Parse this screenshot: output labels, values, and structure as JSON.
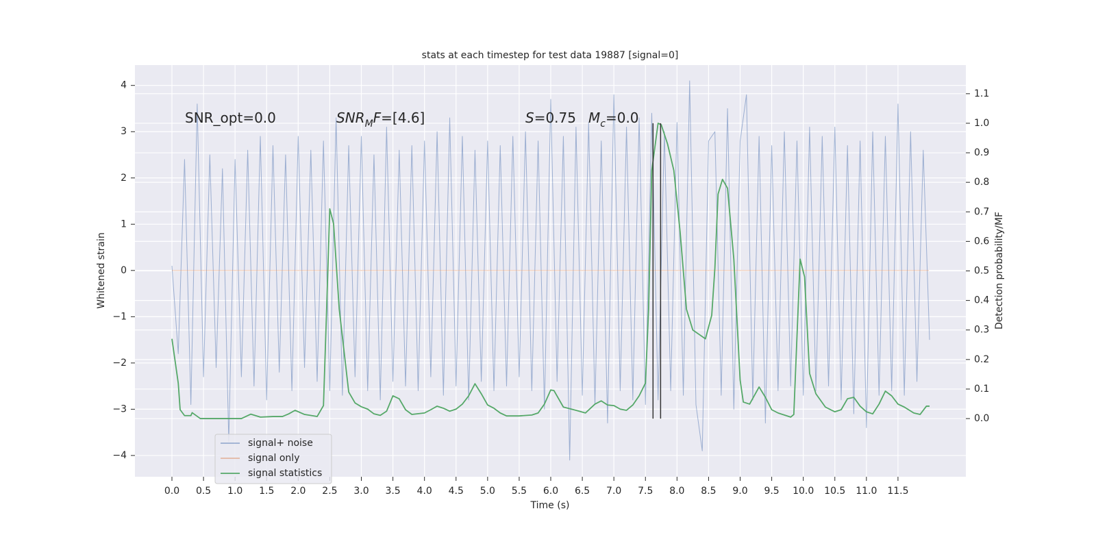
{
  "chart_data": {
    "type": "line",
    "title": "stats at each timestep for test data 19887 [signal=0]",
    "xlabel": "Time (s)",
    "ylabel": "Whitened strain",
    "y2label": "Detection probability/MF",
    "annotations": [
      [
        {
          "text": "SNR_opt=0.0"
        }
      ],
      [
        {
          "text": "SNR",
          "italic": true
        },
        {
          "text": "M",
          "italic": true,
          "sub": true
        },
        {
          "text": "F",
          "italic": true
        },
        {
          "text": "=[4.6]"
        }
      ],
      [
        {
          "text": "S",
          "italic": true
        },
        {
          "text": "=0.75"
        }
      ],
      [
        {
          "text": "M",
          "italic": true
        },
        {
          "text": "c",
          "italic": true,
          "sub": true
        },
        {
          "text": "=0.0"
        }
      ]
    ],
    "xlim": [
      -0.586,
      12.575
    ],
    "ylim": [
      -4.46,
      4.44
    ],
    "y2lim": [
      -0.197,
      1.197
    ],
    "grid": true,
    "legend": "lower left",
    "xticks": [
      {
        "value": 0,
        "label": "0.0"
      },
      0.5,
      {
        "value": 1,
        "label": "1.0"
      },
      1.5,
      {
        "value": 2,
        "label": "2.0"
      },
      2.5,
      {
        "value": 3,
        "label": "3.0"
      },
      3.5,
      {
        "value": 4,
        "label": "4.0"
      },
      4.5,
      {
        "value": 5,
        "label": "5.0"
      },
      5.5,
      {
        "value": 6,
        "label": "6.0"
      },
      6.5,
      {
        "value": 7,
        "label": "7.0"
      },
      7.5,
      {
        "value": 8,
        "label": "8.0"
      },
      8.5,
      {
        "value": 9,
        "label": "9.0"
      },
      9.5,
      {
        "value": 10,
        "label": "10.0"
      },
      10.5,
      {
        "value": 11,
        "label": "11.0"
      },
      11.5
    ],
    "yticks": [
      {
        "value": -4,
        "label": "−4"
      },
      {
        "value": -3,
        "label": "−3"
      },
      {
        "value": -2,
        "label": "−2"
      },
      {
        "value": -1,
        "label": "−1"
      },
      0,
      1,
      2,
      3,
      4
    ],
    "y2ticks": [
      {
        "value": 0,
        "label": "0.0"
      },
      0.1,
      0.2,
      0.3,
      0.4,
      0.5,
      0.6,
      0.7,
      0.8,
      0.9,
      {
        "value": 1,
        "label": "1.0"
      },
      1.1
    ],
    "vlines": {
      "x": [
        7.62,
        7.74
      ],
      "ylim": [
        0,
        1.0
      ],
      "color": "#333333"
    },
    "series": [
      {
        "name": "signal+ noise",
        "color": "#4c72b0",
        "x": [
          0,
          0.1,
          0.2,
          0.3,
          0.4,
          0.5,
          0.6,
          0.7,
          0.8,
          0.9,
          1,
          1.1,
          1.2,
          1.3,
          1.4,
          1.5,
          1.6,
          1.7,
          1.8,
          1.9,
          2,
          2.1,
          2.2,
          2.3,
          2.4,
          2.5,
          2.6,
          2.7,
          2.8,
          2.9,
          3,
          3.1,
          3.2,
          3.3,
          3.4,
          3.5,
          3.6,
          3.7,
          3.8,
          3.9,
          4,
          4.1,
          4.2,
          4.3,
          4.4,
          4.5,
          4.6,
          4.7,
          4.8,
          4.9,
          5,
          5.1,
          5.2,
          5.3,
          5.4,
          5.5,
          5.6,
          5.7,
          5.8,
          5.9,
          6,
          6.1,
          6.2,
          6.3,
          6.4,
          6.5,
          6.6,
          6.7,
          6.8,
          6.9,
          7,
          7.1,
          7.2,
          7.3,
          7.4,
          7.5,
          7.6,
          7.7,
          7.8,
          7.9,
          8,
          8.1,
          8.2,
          8.3,
          8.4,
          8.5,
          8.6,
          8.7,
          8.8,
          8.9,
          9,
          9.1,
          9.2,
          9.3,
          9.4,
          9.5,
          9.6,
          9.7,
          9.8,
          9.9,
          10,
          10.1,
          10.2,
          10.3,
          10.4,
          10.5,
          10.6,
          10.7,
          10.8,
          10.9,
          11,
          11.1,
          11.2,
          11.3,
          11.4,
          11.5,
          11.6,
          11.7,
          11.8,
          11.9,
          12
        ],
        "values": [
          0.1,
          -1.8,
          2.4,
          -2.9,
          3.6,
          -2.3,
          2.5,
          -2.1,
          2.2,
          -3.7,
          2.4,
          -2.3,
          2.6,
          -2.5,
          2.9,
          -2.8,
          2.7,
          -2.2,
          2.5,
          -2.6,
          2.9,
          -2.1,
          2.6,
          -2.4,
          2.8,
          -2.6,
          3.3,
          -2.7,
          2.7,
          -2.3,
          2.9,
          -2.6,
          2.5,
          -2.8,
          3.1,
          -2.4,
          2.6,
          -2.5,
          2.7,
          -2.6,
          2.8,
          -2.3,
          3.0,
          -2.7,
          3.3,
          -2.5,
          2.9,
          -2.8,
          2.6,
          -2.4,
          2.8,
          -2.6,
          2.7,
          -2.5,
          2.9,
          -2.3,
          3.0,
          -2.6,
          2.8,
          -3.0,
          3.7,
          -2.4,
          2.9,
          -4.1,
          3.1,
          -2.7,
          3.2,
          -2.9,
          2.8,
          -3.3,
          3.8,
          -2.6,
          3.1,
          -2.8,
          3.3,
          -2.9,
          3.4,
          -2.8,
          3.0,
          -2.6,
          3.2,
          -2.7,
          4.1,
          -2.9,
          -3.9,
          2.8,
          3.0,
          -2.7,
          3.5,
          -3.0,
          2.8,
          3.8,
          -2.8,
          2.9,
          -3.3,
          2.7,
          -2.6,
          3.0,
          -2.5,
          2.8,
          -2.7,
          3.1,
          -2.6,
          2.9,
          -2.5,
          3.1,
          -2.8,
          2.7,
          -3.1,
          2.8,
          -3.4,
          3.0,
          -2.7,
          2.9,
          -2.6,
          3.6,
          -2.7,
          3.0,
          -2.4,
          2.6,
          -1.5
        ]
      },
      {
        "name": "signal only",
        "color": "#dd8452",
        "x": [
          0,
          11.99
        ],
        "values": [
          0,
          0
        ]
      },
      {
        "name": "signal statistics",
        "color": "#55a868",
        "axis": "y2",
        "x": [
          0,
          0.1,
          0.13,
          0.2,
          0.3,
          0.32,
          0.45,
          0.6,
          0.8,
          1.0,
          1.1,
          1.25,
          1.4,
          1.6,
          1.75,
          1.85,
          1.95,
          2.1,
          2.3,
          2.4,
          2.45,
          2.5,
          2.56,
          2.65,
          2.8,
          2.9,
          3.0,
          3.1,
          3.2,
          3.3,
          3.4,
          3.5,
          3.6,
          3.7,
          3.8,
          4.0,
          4.1,
          4.2,
          4.3,
          4.4,
          4.5,
          4.6,
          4.7,
          4.8,
          4.9,
          5.0,
          5.1,
          5.2,
          5.3,
          5.5,
          5.7,
          5.8,
          5.9,
          6.0,
          6.05,
          6.2,
          6.4,
          6.55,
          6.7,
          6.8,
          6.9,
          7.0,
          7.1,
          7.2,
          7.3,
          7.4,
          7.5,
          7.55,
          7.6,
          7.7,
          7.75,
          7.85,
          7.95,
          8.05,
          8.15,
          8.25,
          8.35,
          8.45,
          8.55,
          8.6,
          8.65,
          8.72,
          8.8,
          8.9,
          9.0,
          9.05,
          9.15,
          9.3,
          9.4,
          9.5,
          9.6,
          9.7,
          9.8,
          9.85,
          9.95,
          10.02,
          10.1,
          10.2,
          10.35,
          10.5,
          10.6,
          10.7,
          10.8,
          10.9,
          11.0,
          11.1,
          11.2,
          11.3,
          11.4,
          11.5,
          11.6,
          11.75,
          11.85,
          11.95,
          12.0
        ],
        "values": [
          0.27,
          0.12,
          0.03,
          0.01,
          0.01,
          0.02,
          0.0,
          0.0,
          0.0,
          0.0,
          0.0,
          0.015,
          0.005,
          0.007,
          0.007,
          0.016,
          0.028,
          0.014,
          0.007,
          0.044,
          0.37,
          0.71,
          0.66,
          0.37,
          0.09,
          0.053,
          0.04,
          0.032,
          0.016,
          0.011,
          0.025,
          0.077,
          0.067,
          0.03,
          0.014,
          0.019,
          0.03,
          0.042,
          0.035,
          0.025,
          0.032,
          0.049,
          0.077,
          0.118,
          0.084,
          0.046,
          0.035,
          0.019,
          0.009,
          0.009,
          0.012,
          0.019,
          0.049,
          0.097,
          0.095,
          0.039,
          0.028,
          0.019,
          0.049,
          0.06,
          0.046,
          0.044,
          0.032,
          0.028,
          0.046,
          0.077,
          0.12,
          0.37,
          0.84,
          1.0,
          0.995,
          0.93,
          0.84,
          0.63,
          0.37,
          0.3,
          0.285,
          0.27,
          0.35,
          0.51,
          0.76,
          0.81,
          0.78,
          0.54,
          0.13,
          0.056,
          0.049,
          0.107,
          0.072,
          0.03,
          0.019,
          0.012,
          0.005,
          0.014,
          0.54,
          0.48,
          0.153,
          0.084,
          0.039,
          0.023,
          0.03,
          0.067,
          0.072,
          0.042,
          0.023,
          0.016,
          0.049,
          0.093,
          0.077,
          0.049,
          0.039,
          0.019,
          0.014,
          0.042,
          0.042
        ]
      }
    ]
  }
}
